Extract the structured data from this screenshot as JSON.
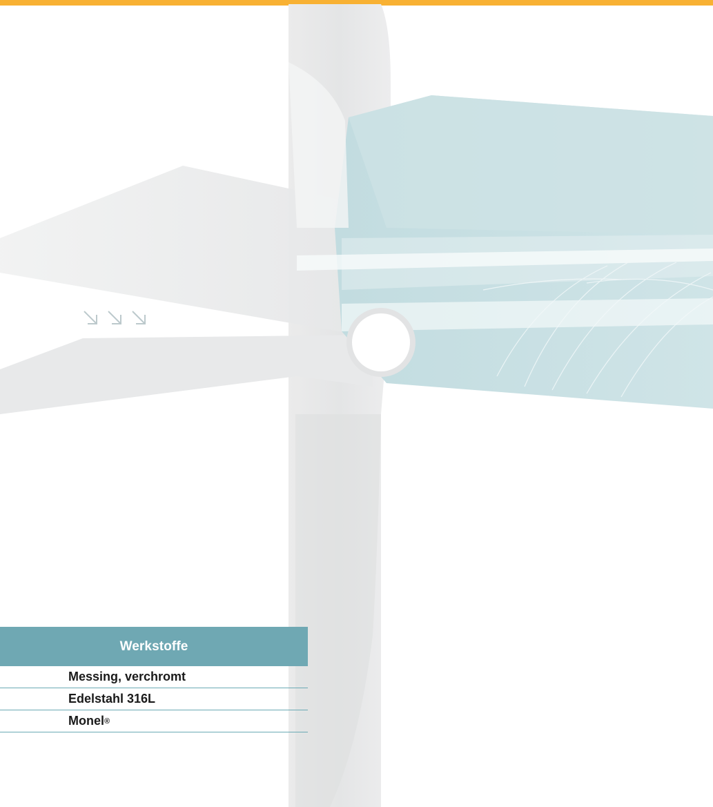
{
  "colors": {
    "accent_bar": "#f8b133",
    "header_bg": "#6fa8b3",
    "row_divider": "#6aa9b4",
    "text": "#1a1a1a",
    "teal_art": "#c7dfe3",
    "grey_art": "#e8e9ea"
  },
  "decoration": {
    "arrow_icons": [
      "arrow-down-right-icon",
      "arrow-down-right-icon",
      "arrow-down-right-icon"
    ]
  },
  "materials": {
    "header": "Werkstoffe",
    "rows": [
      {
        "label": "Messing, verchromt",
        "sup": ""
      },
      {
        "label": "Edelstahl 316L",
        "sup": ""
      },
      {
        "label": "Monel",
        "sup": "®"
      }
    ]
  }
}
